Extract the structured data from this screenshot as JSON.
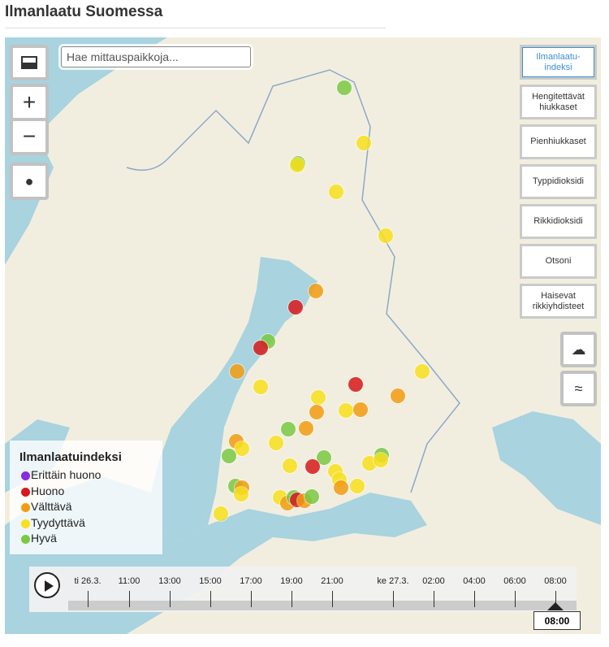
{
  "header": {
    "title": "Ilmanlaatu Suomessa"
  },
  "search": {
    "placeholder": "Hae mittauspaikkoja..."
  },
  "controls": {
    "zoom_in": "+",
    "zoom_out": "−"
  },
  "layers": [
    "Ilmanlaatu-indeksi",
    "Hengitettävät hiukkaset",
    "Pienhiukkaset",
    "Typpidioksidi",
    "Rikkidioksidi",
    "Otsoni",
    "Haisevat rikkiyhdisteet"
  ],
  "legend": {
    "title": "Ilmanlaatuindeksi",
    "items": [
      {
        "label": "Erittäin huono",
        "color": "#8a2be2"
      },
      {
        "label": "Huono",
        "color": "#d7191c"
      },
      {
        "label": "Välttävä",
        "color": "#f39c12"
      },
      {
        "label": "Tyydyttävä",
        "color": "#f7e01d"
      },
      {
        "label": "Hyvä",
        "color": "#7ac943"
      }
    ]
  },
  "timeline": {
    "labels": [
      "ti 26.3.",
      "11:00",
      "13:00",
      "15:00",
      "17:00",
      "19:00",
      "21:00",
      "ke 27.3.",
      "02:00",
      "04:00",
      "06:00",
      "08:00"
    ],
    "current": "08:00"
  }
}
